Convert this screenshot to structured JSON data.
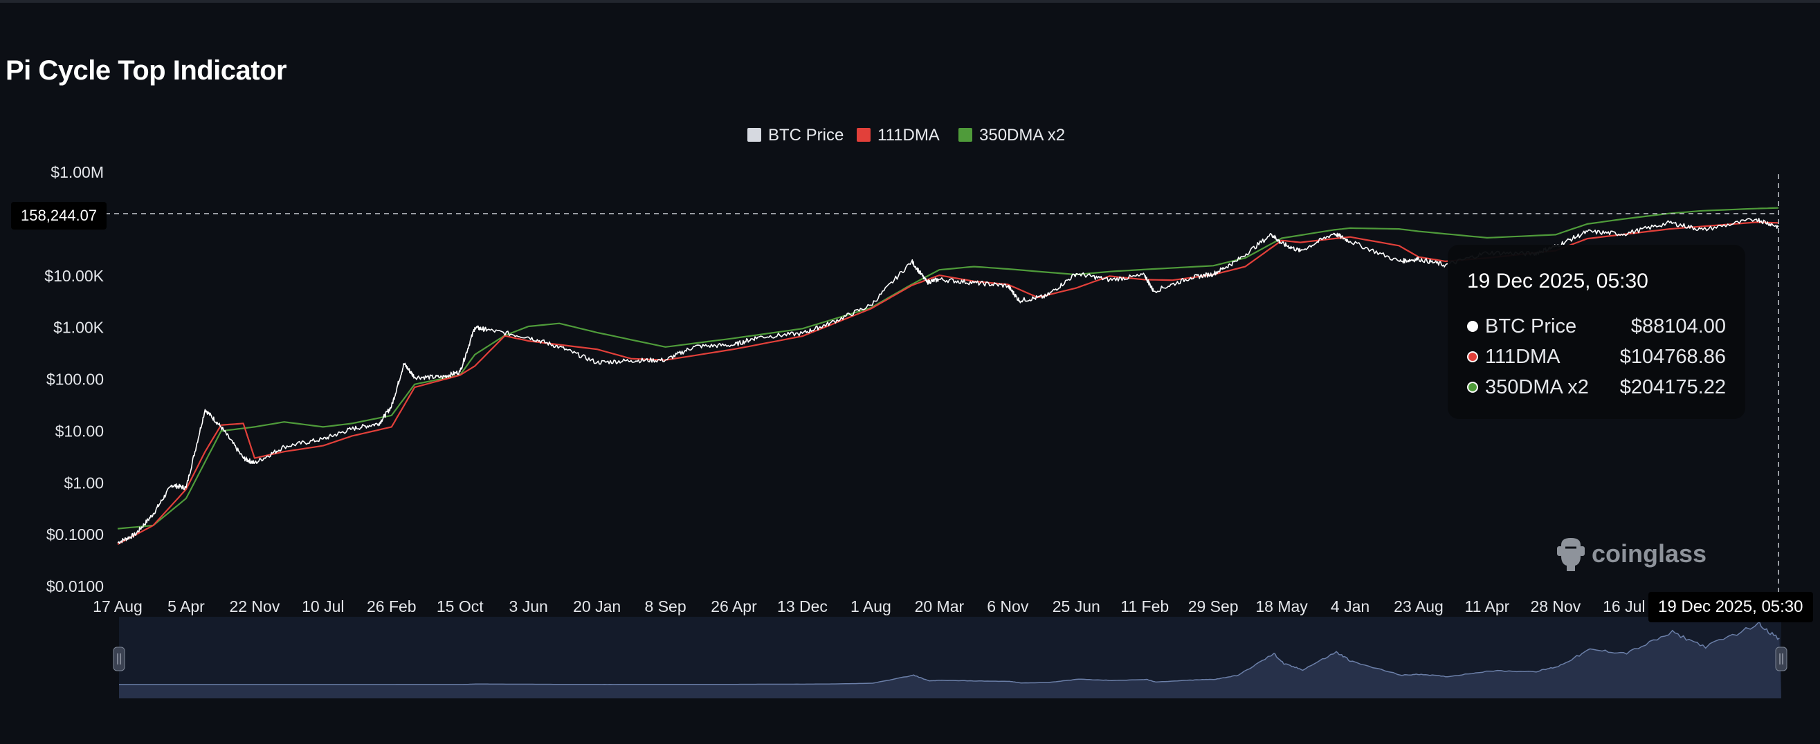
{
  "page": {
    "title": "Pi Cycle Top Indicator",
    "watermark": "coinglass"
  },
  "colors": {
    "background": "#0c0f15",
    "btc_price": "#ffffff",
    "dma111": "#e2403a",
    "dma350x2": "#4f9b3a",
    "navigator_fill": "#27314a",
    "navigator_line": "#6b7fa8"
  },
  "icons": {
    "watermark_logo": "coinglass-logo-icon"
  },
  "chart_data": {
    "type": "line",
    "title": "Pi Cycle Top Indicator",
    "y_scale": "log",
    "ylim": [
      0.01,
      1000000
    ],
    "y_ticks": [
      {
        "value": 1000000,
        "label": "$1.00M"
      },
      {
        "value": 100000,
        "label": ""
      },
      {
        "value": 10000,
        "label": "$10.00K"
      },
      {
        "value": 1000,
        "label": "$1.00K"
      },
      {
        "value": 100,
        "label": "$100.00"
      },
      {
        "value": 10,
        "label": "$10.00"
      },
      {
        "value": 1,
        "label": "$1.00"
      },
      {
        "value": 0.1,
        "label": "$0.1000"
      },
      {
        "value": 0.01,
        "label": "$0.0100"
      }
    ],
    "x_range": [
      "2010-08-17",
      "2025-12-19"
    ],
    "x_ticks": [
      {
        "date": "2010-08-17",
        "label": "17 Aug"
      },
      {
        "date": "2011-04-05",
        "label": "5 Apr"
      },
      {
        "date": "2011-11-22",
        "label": "22 Nov"
      },
      {
        "date": "2012-07-10",
        "label": "10 Jul"
      },
      {
        "date": "2013-02-26",
        "label": "26 Feb"
      },
      {
        "date": "2013-10-15",
        "label": "15 Oct"
      },
      {
        "date": "2014-06-03",
        "label": "3 Jun"
      },
      {
        "date": "2015-01-20",
        "label": "20 Jan"
      },
      {
        "date": "2015-09-08",
        "label": "8 Sep"
      },
      {
        "date": "2016-04-26",
        "label": "26 Apr"
      },
      {
        "date": "2016-12-13",
        "label": "13 Dec"
      },
      {
        "date": "2017-08-01",
        "label": "1 Aug"
      },
      {
        "date": "2018-03-20",
        "label": "20 Mar"
      },
      {
        "date": "2018-11-06",
        "label": "6 Nov"
      },
      {
        "date": "2019-06-25",
        "label": "25 Jun"
      },
      {
        "date": "2020-02-11",
        "label": "11 Feb"
      },
      {
        "date": "2020-09-29",
        "label": "29 Sep"
      },
      {
        "date": "2021-05-18",
        "label": "18 May"
      },
      {
        "date": "2022-01-04",
        "label": "4 Jan"
      },
      {
        "date": "2022-08-23",
        "label": "23 Aug"
      },
      {
        "date": "2023-04-11",
        "label": "11 Apr"
      },
      {
        "date": "2023-11-28",
        "label": "28 Nov"
      },
      {
        "date": "2024-07-16",
        "label": "16 Jul"
      }
    ],
    "legend": {
      "placement": "top-center"
    },
    "series": [
      {
        "name": "BTC Price",
        "color": "#ffffff",
        "x": [
          "2010-08-17",
          "2010-10-15",
          "2010-12-15",
          "2011-02-15",
          "2011-04-05",
          "2011-06-08",
          "2011-08-01",
          "2011-10-15",
          "2011-11-22",
          "2012-03-01",
          "2012-07-10",
          "2012-10-15",
          "2013-01-15",
          "2013-02-26",
          "2013-04-09",
          "2013-05-15",
          "2013-08-15",
          "2013-10-15",
          "2013-12-04",
          "2014-01-15",
          "2014-06-03",
          "2014-09-15",
          "2015-01-20",
          "2015-05-15",
          "2015-09-08",
          "2015-12-15",
          "2016-04-26",
          "2016-07-15",
          "2016-12-13",
          "2017-03-15",
          "2017-08-01",
          "2017-12-17",
          "2018-02-06",
          "2018-03-20",
          "2018-07-15",
          "2018-11-06",
          "2018-12-15",
          "2019-03-15",
          "2019-06-25",
          "2019-10-15",
          "2020-02-11",
          "2020-03-12",
          "2020-07-15",
          "2020-09-29",
          "2020-12-15",
          "2021-04-14",
          "2021-05-18",
          "2021-07-20",
          "2021-11-10",
          "2022-01-04",
          "2022-06-18",
          "2022-08-23",
          "2022-11-21",
          "2023-04-11",
          "2023-09-15",
          "2023-11-28",
          "2024-03-14",
          "2024-07-16",
          "2024-12-17",
          "2025-04-08",
          "2025-10-06",
          "2025-12-19"
        ],
        "values": [
          0.07,
          0.1,
          0.25,
          0.9,
          0.8,
          26,
          12,
          3,
          2.4,
          5,
          7,
          11,
          14,
          30,
          200,
          110,
          110,
          140,
          1000,
          900,
          650,
          420,
          210,
          230,
          235,
          430,
          460,
          650,
          770,
          1200,
          2700,
          19000,
          7500,
          8500,
          7300,
          6400,
          3300,
          4000,
          11000,
          8300,
          10200,
          5000,
          9200,
          10800,
          19000,
          63000,
          42000,
          30000,
          66000,
          46000,
          19000,
          21000,
          16000,
          28000,
          26500,
          37000,
          71000,
          64000,
          106000,
          77000,
          124000,
          88104
        ]
      },
      {
        "name": "111DMA",
        "color": "#e2403a",
        "x": [
          "2010-08-17",
          "2010-12-15",
          "2011-04-05",
          "2011-06-08",
          "2011-08-01",
          "2011-10-15",
          "2011-11-22",
          "2012-03-01",
          "2012-07-10",
          "2012-10-15",
          "2013-02-26",
          "2013-05-15",
          "2013-10-15",
          "2013-12-04",
          "2014-03-15",
          "2014-06-03",
          "2015-01-20",
          "2015-05-15",
          "2015-09-08",
          "2016-04-26",
          "2016-12-13",
          "2017-08-01",
          "2017-12-17",
          "2018-03-20",
          "2018-07-15",
          "2018-11-06",
          "2019-02-15",
          "2019-06-25",
          "2019-10-15",
          "2020-02-11",
          "2020-05-15",
          "2020-09-29",
          "2021-01-15",
          "2021-05-18",
          "2021-07-20",
          "2021-11-10",
          "2022-01-04",
          "2022-06-18",
          "2022-08-23",
          "2022-11-21",
          "2023-04-11",
          "2023-11-28",
          "2024-03-14",
          "2024-07-16",
          "2024-12-17",
          "2025-04-08",
          "2025-10-06",
          "2025-12-19"
        ],
        "values": [
          0.065,
          0.15,
          0.75,
          4,
          13,
          14,
          3,
          4,
          5.2,
          8,
          12,
          70,
          120,
          180,
          690,
          550,
          380,
          250,
          235,
          380,
          680,
          2300,
          6500,
          10200,
          7800,
          6800,
          3800,
          5800,
          9800,
          8400,
          8200,
          10500,
          15000,
          48000,
          44000,
          52000,
          56000,
          38000,
          23000,
          19000,
          22000,
          30500,
          52000,
          63000,
          80000,
          90000,
          108000,
          104768.86
        ]
      },
      {
        "name": "350DMA x2",
        "color": "#4f9b3a",
        "x": [
          "2010-08-17",
          "2010-12-15",
          "2011-04-05",
          "2011-08-01",
          "2011-11-22",
          "2012-03-01",
          "2012-07-10",
          "2012-10-15",
          "2013-02-26",
          "2013-05-15",
          "2013-10-15",
          "2013-12-04",
          "2014-03-15",
          "2014-06-03",
          "2014-09-15",
          "2015-01-20",
          "2015-09-08",
          "2016-04-26",
          "2016-12-13",
          "2017-08-01",
          "2017-12-17",
          "2018-03-20",
          "2018-07-15",
          "2018-11-06",
          "2019-06-25",
          "2019-10-15",
          "2020-02-11",
          "2020-09-29",
          "2021-01-15",
          "2021-05-18",
          "2021-11-10",
          "2022-01-04",
          "2022-06-18",
          "2022-08-23",
          "2023-04-11",
          "2023-11-28",
          "2024-03-14",
          "2024-07-16",
          "2024-12-17",
          "2025-04-08",
          "2025-10-06",
          "2025-12-19"
        ],
        "values": [
          0.13,
          0.15,
          0.5,
          10,
          12,
          15,
          12,
          14,
          20,
          80,
          120,
          300,
          700,
          1050,
          1200,
          800,
          420,
          620,
          950,
          2400,
          6800,
          13000,
          15000,
          13500,
          10500,
          12000,
          13200,
          15600,
          22000,
          53000,
          77000,
          83000,
          80000,
          72000,
          54000,
          62000,
          100000,
          125000,
          160000,
          180000,
          198000,
          204175.22
        ]
      }
    ],
    "crosshair": {
      "value_label": "158,244.07",
      "date_label": "19 Dec 2025, 05:30"
    },
    "tooltip": {
      "date": "19 Dec 2025, 05:30",
      "rows": [
        {
          "name": "BTC Price",
          "value": "$88104.00",
          "color": "#ffffff"
        },
        {
          "name": "111DMA",
          "value": "$104768.86",
          "color": "#e2403a"
        },
        {
          "name": "350DMA x2",
          "value": "$204175.22",
          "color": "#4f9b3a"
        }
      ]
    }
  }
}
